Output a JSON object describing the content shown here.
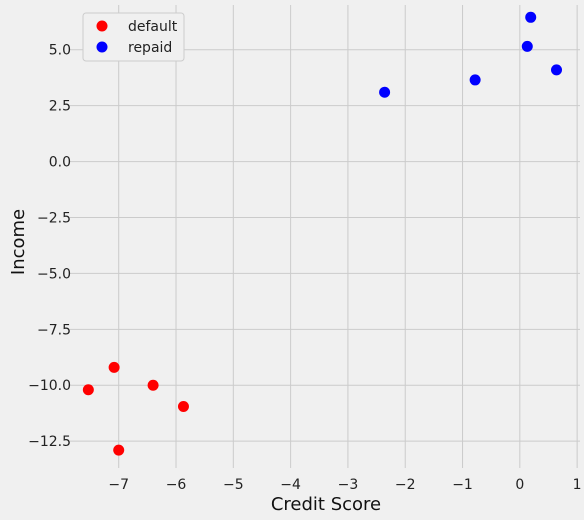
{
  "chart_data": {
    "type": "scatter",
    "title": "",
    "xlabel": "Credit Score",
    "ylabel": "Income",
    "xlim": [
      -7.85,
      1.05
    ],
    "ylim": [
      -13.7,
      7.0
    ],
    "xticks": [
      -7,
      -6,
      -5,
      -4,
      -3,
      -2,
      -1,
      0,
      1
    ],
    "xtick_labels": [
      "−7",
      "−6",
      "−5",
      "−4",
      "−3",
      "−2",
      "−1",
      "0",
      "1"
    ],
    "yticks": [
      5.0,
      2.5,
      0.0,
      -2.5,
      -5.0,
      -7.5,
      -10.0,
      -12.5
    ],
    "ytick_labels": [
      "5.0",
      "2.5",
      "0.0",
      "−2.5",
      "−5.0",
      "−7.5",
      "−10.0",
      "−12.5"
    ],
    "grid": true,
    "legend_position": "top-left",
    "series": [
      {
        "name": "default",
        "color": "#ff0000",
        "x": [
          -7.08,
          -7.53,
          -6.4,
          -5.87,
          -7.0
        ],
        "y": [
          -9.2,
          -10.2,
          -10.0,
          -10.95,
          -12.9
        ]
      },
      {
        "name": "repaid",
        "color": "#0000ff",
        "x": [
          -2.36,
          -0.78,
          0.13,
          0.19,
          0.64
        ],
        "y": [
          3.1,
          3.65,
          5.15,
          6.45,
          4.1
        ]
      }
    ]
  }
}
